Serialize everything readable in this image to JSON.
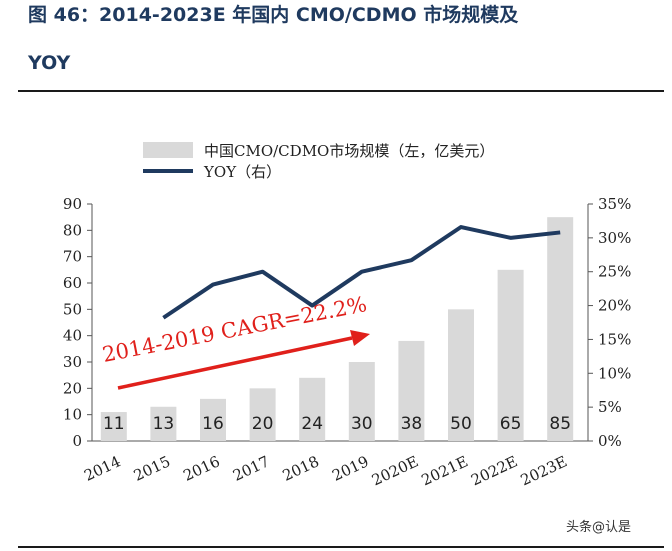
{
  "title": "图 46：2014-2023E 年国内 CMO/CDMO 市场规模及",
  "title_line2": "YOY",
  "watermark": "头条@认是",
  "chart_data": {
    "type": "bar",
    "categories": [
      "2014",
      "2015",
      "2016",
      "2017",
      "2018",
      "2019",
      "2020E",
      "2021E",
      "2022E",
      "2023E"
    ],
    "series": [
      {
        "name": "中国CMO/CDMO市场规模（左，亿美元）",
        "type": "bar",
        "axis": "left",
        "values": [
          11,
          13,
          16,
          20,
          24,
          30,
          38,
          50,
          65,
          85
        ],
        "color": "#d9d9d9"
      },
      {
        "name": "YOY（右）",
        "type": "line",
        "axis": "right",
        "values": [
          null,
          18.2,
          23.1,
          25.0,
          20.0,
          25.0,
          26.7,
          31.6,
          30.0,
          30.8
        ],
        "color": "#1f3a5f"
      }
    ],
    "y_left": {
      "ticks": [
        "0",
        "10",
        "20",
        "30",
        "40",
        "50",
        "60",
        "70",
        "80",
        "90"
      ],
      "ylim": [
        0,
        90
      ]
    },
    "y_right": {
      "ticks": [
        "0%",
        "5%",
        "10%",
        "15%",
        "20%",
        "25%",
        "30%",
        "35%"
      ],
      "ylim": [
        0,
        35
      ]
    },
    "annotation": {
      "text": "2014-2019 CAGR=22.2%",
      "color": "#e0201b",
      "arrow": "from 2014 to 2019, rising"
    },
    "legend_position": "top",
    "grid": false
  }
}
